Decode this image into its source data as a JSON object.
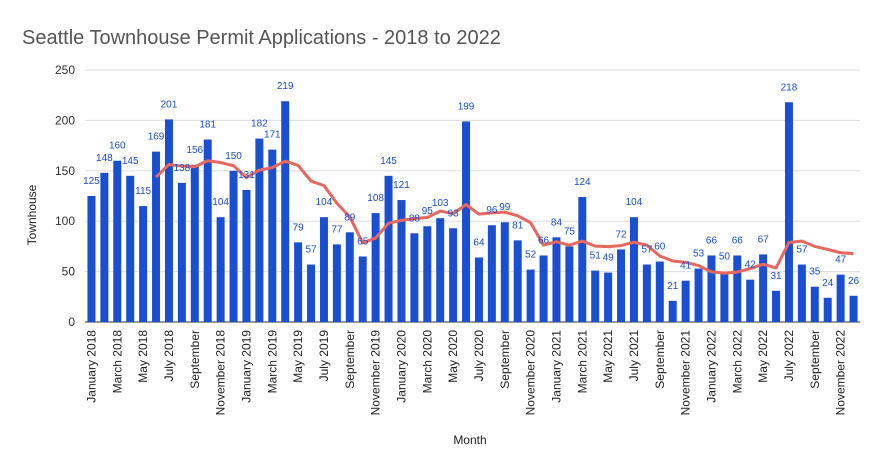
{
  "chart_data": {
    "type": "bar",
    "title": "Seattle Townhouse Permit Applications - 2018 to 2022",
    "x_label": "Month",
    "y_label": "Townhouse",
    "categories": [
      "January 2018",
      null,
      "March 2018",
      null,
      "May 2018",
      null,
      "July 2018",
      null,
      "September",
      null,
      "November 2018",
      null,
      "January 2019",
      null,
      "March 2019",
      null,
      "May 2019",
      null,
      "July 2019",
      null,
      "September",
      null,
      "November 2019",
      null,
      "January 2020",
      null,
      "March 2020",
      null,
      "May 2020",
      null,
      "July 2020",
      null,
      "September",
      null,
      "November 2020",
      null,
      "January 2021",
      null,
      "March 2021",
      null,
      "May 2021",
      null,
      "July 2021",
      null,
      "September",
      null,
      "November 2021",
      null,
      "January 2022",
      null,
      "March 2022",
      null,
      "May 2022",
      null,
      "July 2022",
      null,
      "September",
      null,
      "November 2022",
      null
    ],
    "values": [
      125,
      148,
      160,
      145,
      115,
      169,
      201,
      138,
      156,
      181,
      104,
      150,
      131,
      182,
      171,
      219,
      79,
      57,
      104,
      77,
      89,
      65,
      108,
      145,
      121,
      88,
      95,
      103,
      93,
      199,
      64,
      96,
      99,
      81,
      52,
      66,
      84,
      75,
      124,
      51,
      49,
      72,
      104,
      57,
      60,
      21,
      41,
      53,
      66,
      50,
      66,
      42,
      67,
      31,
      218,
      57,
      35,
      24,
      47,
      26
    ],
    "color": "#1a4fd2",
    "trendline": {
      "color": "#e8675f",
      "values": [
        null,
        null,
        null,
        null,
        null,
        143.7,
        156.3,
        154.7,
        154.0,
        160.0,
        158.2,
        155.0,
        143.3,
        150.7,
        153.2,
        159.5,
        155.3,
        139.8,
        135.3,
        117.8,
        104.2,
        78.5,
        83.3,
        98.0,
        100.8,
        102.7,
        103.7,
        110.0,
        107.5,
        116.5,
        107.0,
        108.3,
        109.0,
        105.3,
        98.5,
        76.3,
        79.7,
        76.2,
        80.3,
        75.3,
        74.8,
        75.8,
        79.2,
        76.2,
        65.5,
        60.5,
        59.2,
        56.0,
        49.7,
        48.5,
        49.5,
        53.0,
        57.3,
        53.7,
        79.0,
        80.2,
        75.0,
        72.0,
        68.7,
        67.8
      ]
    },
    "ylim": [
      0,
      250
    ],
    "yticks": [
      0,
      50,
      100,
      150,
      200,
      250
    ],
    "grid": true
  }
}
